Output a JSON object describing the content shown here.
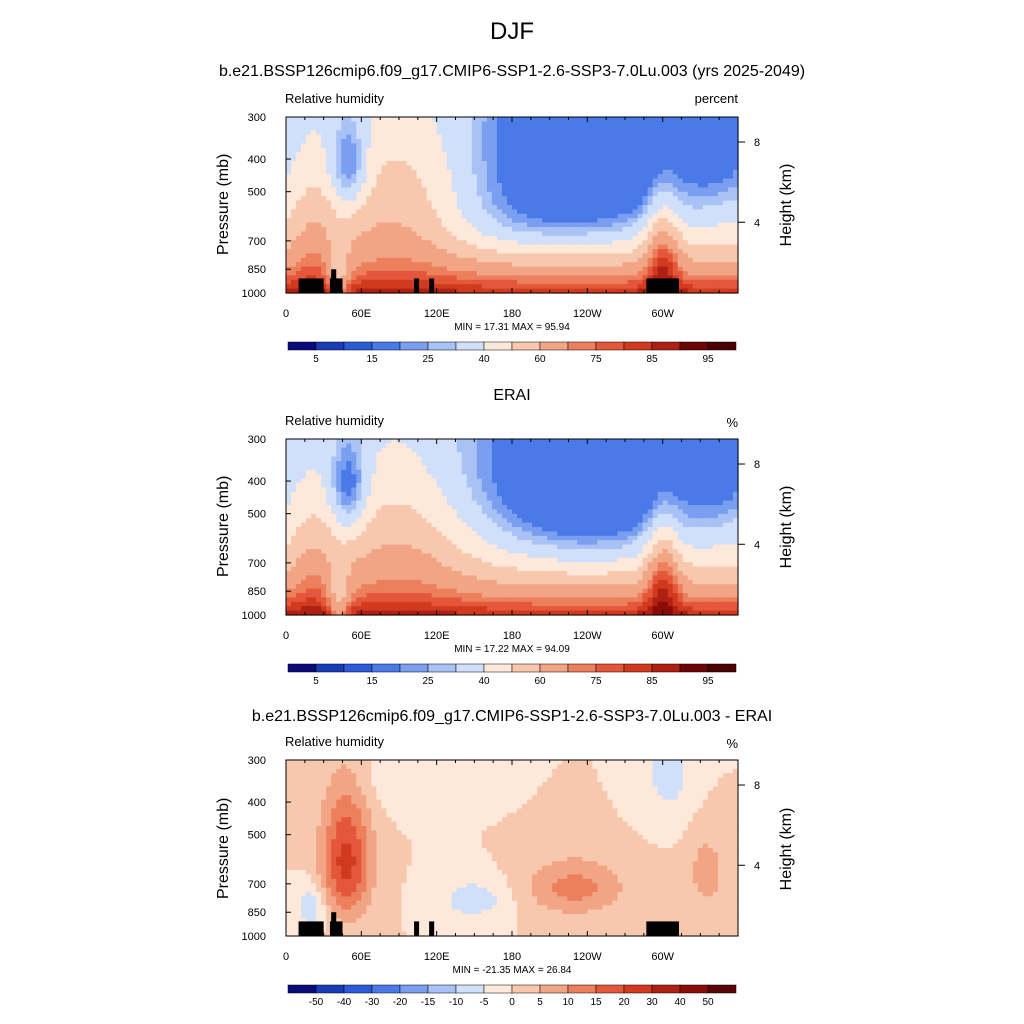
{
  "main_title": "DJF",
  "panels": [
    {
      "title": "b.e21.BSSP126cmip6.f09_g17.CMIP6-SSP1-2.6-SSP3-7.0Lu.003 (yrs 2025-2049)",
      "left_label": "Relative humidity",
      "right_label": "percent",
      "y_axis_label": "Pressure (mb)",
      "right_axis_label": "Height (km)",
      "stats": "MIN =  17.31  MAX =  95.94",
      "colorbar_labels": [
        "5",
        "15",
        "25",
        "40",
        "60",
        "75",
        "85",
        "95"
      ]
    },
    {
      "title": "ERAI",
      "left_label": "Relative humidity",
      "right_label": "%",
      "y_axis_label": "Pressure (mb)",
      "right_axis_label": "Height (km)",
      "stats": "MIN =  17.22  MAX =  94.09",
      "colorbar_labels": [
        "5",
        "15",
        "25",
        "40",
        "60",
        "75",
        "85",
        "95"
      ]
    },
    {
      "title": "b.e21.BSSP126cmip6.f09_g17.CMIP6-SSP1-2.6-SSP3-7.0Lu.003 - ERAI",
      "left_label": "Relative humidity",
      "right_label": "%",
      "y_axis_label": "Pressure (mb)",
      "right_axis_label": "Height (km)",
      "stats": "MIN = -21.35  MAX =  26.84",
      "colorbar_labels": [
        "-50",
        "-40",
        "-30",
        "-20",
        "-15",
        "-10",
        "-5",
        "0",
        "5",
        "10",
        "15",
        "20",
        "30",
        "40",
        "50"
      ]
    }
  ],
  "axes": {
    "x_tick_labels": [
      "0",
      "60E",
      "120E",
      "180",
      "120W",
      "60W"
    ],
    "x_tick_lon": [
      0,
      60,
      120,
      180,
      240,
      300
    ],
    "x_range_lon": [
      0,
      360
    ],
    "y_tick_labels": [
      "300",
      "400",
      "500",
      "700",
      "850",
      "1000"
    ],
    "y_tick_values": [
      300,
      400,
      500,
      700,
      850,
      1000
    ],
    "y_range_mb": [
      300,
      1000
    ],
    "y_scale": "log",
    "height_tick_labels": [
      "8",
      "4"
    ],
    "height_tick_km": [
      8,
      4
    ]
  },
  "chart_data": [
    {
      "type": "heatmap",
      "x_dim": "longitude",
      "y_dim": "pressure (mb)",
      "title": "b.e21.BSSP126cmip6.f09_g17.CMIP6-SSP1-2.6-SSP3-7.0Lu.003 (yrs 2025-2049)",
      "min": 17.31,
      "max": 95.94,
      "contour_levels": [
        5,
        10,
        15,
        20,
        25,
        30,
        40,
        50,
        60,
        70,
        75,
        80,
        85,
        90,
        95
      ],
      "colors": [
        "#0a0a7a",
        "#1a3bb8",
        "#2b5bd9",
        "#4a7ae8",
        "#7a9ef0",
        "#a9c2f5",
        "#d0e0fa",
        "#fde8da",
        "#f8c8ae",
        "#f2a585",
        "#ec7f5c",
        "#e4573a",
        "#d23a20",
        "#b02012",
        "#8a0c08"
      ],
      "topography_mask": [
        [
          10,
          30
        ],
        [
          35,
          45
        ],
        [
          102,
          106
        ],
        [
          114,
          118
        ],
        [
          287,
          313
        ]
      ]
    },
    {
      "type": "heatmap",
      "x_dim": "longitude",
      "y_dim": "pressure (mb)",
      "title": "ERAI",
      "min": 17.22,
      "max": 94.09,
      "contour_levels": [
        5,
        10,
        15,
        20,
        25,
        30,
        40,
        50,
        60,
        70,
        75,
        80,
        85,
        90,
        95
      ],
      "colors": [
        "#0a0a7a",
        "#1a3bb8",
        "#2b5bd9",
        "#4a7ae8",
        "#7a9ef0",
        "#a9c2f5",
        "#d0e0fa",
        "#fde8da",
        "#f8c8ae",
        "#f2a585",
        "#ec7f5c",
        "#e4573a",
        "#d23a20",
        "#b02012",
        "#8a0c08"
      ]
    },
    {
      "type": "heatmap",
      "x_dim": "longitude",
      "y_dim": "pressure (mb)",
      "title": "b.e21.BSSP126cmip6.f09_g17.CMIP6-SSP1-2.6-SSP3-7.0Lu.003 - ERAI",
      "min": -21.35,
      "max": 26.84,
      "contour_levels": [
        -50,
        -40,
        -30,
        -20,
        -15,
        -10,
        -5,
        0,
        5,
        10,
        15,
        20,
        30,
        40,
        50
      ],
      "colors": [
        "#0a0a7a",
        "#1a3bb8",
        "#2b5bd9",
        "#4a7ae8",
        "#7a9ef0",
        "#a9c2f5",
        "#d0e0fa",
        "#fde8da",
        "#f8c8ae",
        "#f2a585",
        "#ec7f5c",
        "#e4573a",
        "#d23a20",
        "#b02012",
        "#8a0c08",
        "#5a0505"
      ],
      "topography_mask": [
        [
          10,
          30
        ],
        [
          35,
          45
        ],
        [
          102,
          106
        ],
        [
          114,
          118
        ],
        [
          287,
          313
        ]
      ]
    }
  ],
  "colorbar_colors": {
    "absolute": [
      "#0a0a7a",
      "#1a3bb8",
      "#2b5bd9",
      "#4a7ae8",
      "#7a9ef0",
      "#a9c2f5",
      "#d0e0fa",
      "#fde8da",
      "#f8c8ae",
      "#f2a585",
      "#ec7f5c",
      "#e4573a",
      "#d23a20",
      "#b02012",
      "#6e0505",
      "#4a0202"
    ],
    "difference": [
      "#0a0a7a",
      "#1a3bb8",
      "#2b5bd9",
      "#4a7ae8",
      "#7a9ef0",
      "#a9c2f5",
      "#d0e0fa",
      "#fde8da",
      "#f8c8ae",
      "#f2a585",
      "#ec7f5c",
      "#e4573a",
      "#d23a20",
      "#b02012",
      "#8a0c08",
      "#5a0505"
    ]
  }
}
